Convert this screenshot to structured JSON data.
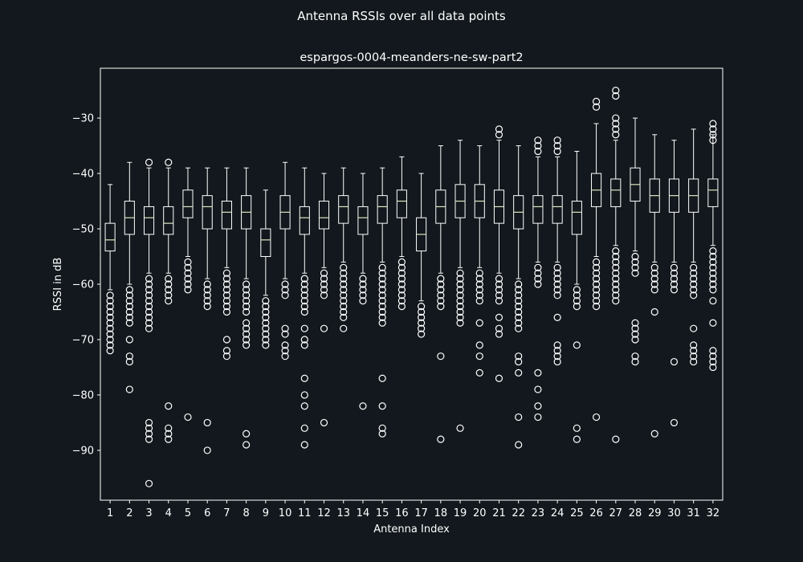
{
  "suptitle": "Antenna RSSIs over all data points",
  "chart_data": {
    "type": "boxplot",
    "title": "espargos-0004-meanders-ne-sw-part2",
    "xlabel": "Antenna Index",
    "ylabel": "RSSI in dB",
    "ylim": [
      -99,
      -21
    ],
    "yticks": [
      -90,
      -80,
      -70,
      -60,
      -50,
      -40,
      -30
    ],
    "categories": [
      "1",
      "2",
      "3",
      "4",
      "5",
      "6",
      "7",
      "8",
      "9",
      "10",
      "11",
      "12",
      "13",
      "14",
      "15",
      "16",
      "17",
      "18",
      "19",
      "20",
      "21",
      "22",
      "23",
      "24",
      "25",
      "26",
      "27",
      "28",
      "29",
      "30",
      "31",
      "32"
    ],
    "colors": {
      "background": "#12181d",
      "box": "#ffffff",
      "median": "#d9e8c0"
    },
    "boxes": [
      {
        "q1": -54,
        "median": -52,
        "q3": -49,
        "whislo": -61,
        "whishi": -42,
        "fliers": [
          -62,
          -63,
          -64,
          -65,
          -66,
          -67,
          -68,
          -69,
          -70,
          -71,
          -72
        ]
      },
      {
        "q1": -51,
        "median": -48,
        "q3": -45,
        "whislo": -60,
        "whishi": -38,
        "fliers": [
          -61,
          -62,
          -63,
          -64,
          -65,
          -66,
          -67,
          -70,
          -73,
          -74,
          -79
        ]
      },
      {
        "q1": -51,
        "median": -48,
        "q3": -46,
        "whislo": -58,
        "whishi": -39,
        "fliers": [
          -38,
          -59,
          -60,
          -61,
          -62,
          -63,
          -64,
          -65,
          -66,
          -67,
          -68,
          -85,
          -86,
          -87,
          -88,
          -96
        ]
      },
      {
        "q1": -51,
        "median": -49,
        "q3": -46,
        "whislo": -58,
        "whishi": -39,
        "fliers": [
          -38,
          -59,
          -60,
          -61,
          -62,
          -63,
          -82,
          -86,
          -87,
          -88
        ]
      },
      {
        "q1": -48,
        "median": -46,
        "q3": -43,
        "whislo": -55,
        "whishi": -39,
        "fliers": [
          -56,
          -57,
          -58,
          -59,
          -60,
          -61,
          -84
        ]
      },
      {
        "q1": -50,
        "median": -46,
        "q3": -44,
        "whislo": -59,
        "whishi": -39,
        "fliers": [
          -60,
          -61,
          -62,
          -63,
          -64,
          -85,
          -90
        ]
      },
      {
        "q1": -50,
        "median": -47,
        "q3": -45,
        "whislo": -57,
        "whishi": -39,
        "fliers": [
          -58,
          -59,
          -60,
          -61,
          -62,
          -63,
          -64,
          -65,
          -70,
          -72,
          -73
        ]
      },
      {
        "q1": -50,
        "median": -47,
        "q3": -44,
        "whislo": -59,
        "whishi": -39,
        "fliers": [
          -60,
          -61,
          -62,
          -63,
          -64,
          -65,
          -67,
          -68,
          -69,
          -70,
          -71,
          -87,
          -89
        ]
      },
      {
        "q1": -55,
        "median": -52,
        "q3": -50,
        "whislo": -62,
        "whishi": -43,
        "fliers": [
          -63,
          -64,
          -65,
          -66,
          -67,
          -68,
          -69,
          -70,
          -71
        ]
      },
      {
        "q1": -50,
        "median": -47,
        "q3": -44,
        "whislo": -59,
        "whishi": -38,
        "fliers": [
          -60,
          -61,
          -62,
          -68,
          -69,
          -71,
          -72,
          -73
        ]
      },
      {
        "q1": -51,
        "median": -48,
        "q3": -46,
        "whislo": -58,
        "whishi": -39,
        "fliers": [
          -59,
          -60,
          -61,
          -62,
          -63,
          -64,
          -65,
          -68,
          -70,
          -71,
          -77,
          -80,
          -82,
          -86,
          -89
        ]
      },
      {
        "q1": -50,
        "median": -48,
        "q3": -45,
        "whislo": -57,
        "whishi": -40,
        "fliers": [
          -58,
          -59,
          -60,
          -61,
          -62,
          -68,
          -85
        ]
      },
      {
        "q1": -49,
        "median": -46,
        "q3": -44,
        "whislo": -56,
        "whishi": -39,
        "fliers": [
          -57,
          -58,
          -59,
          -60,
          -61,
          -62,
          -63,
          -64,
          -65,
          -66,
          -68
        ]
      },
      {
        "q1": -51,
        "median": -48,
        "q3": -46,
        "whislo": -58,
        "whishi": -40,
        "fliers": [
          -59,
          -60,
          -61,
          -62,
          -63,
          -82
        ]
      },
      {
        "q1": -49,
        "median": -46,
        "q3": -44,
        "whislo": -56,
        "whishi": -39,
        "fliers": [
          -57,
          -58,
          -59,
          -60,
          -61,
          -62,
          -63,
          -64,
          -65,
          -66,
          -67,
          -77,
          -82,
          -86,
          -87
        ]
      },
      {
        "q1": -48,
        "median": -45,
        "q3": -43,
        "whislo": -55,
        "whishi": -37,
        "fliers": [
          -56,
          -57,
          -58,
          -59,
          -60,
          -61,
          -62,
          -63,
          -64
        ]
      },
      {
        "q1": -54,
        "median": -51,
        "q3": -48,
        "whislo": -63,
        "whishi": -40,
        "fliers": [
          -64,
          -65,
          -66,
          -67,
          -68,
          -69
        ]
      },
      {
        "q1": -49,
        "median": -46,
        "q3": -43,
        "whislo": -58,
        "whishi": -35,
        "fliers": [
          -59,
          -60,
          -61,
          -62,
          -63,
          -64,
          -73,
          -88
        ]
      },
      {
        "q1": -48,
        "median": -45,
        "q3": -42,
        "whislo": -57,
        "whishi": -34,
        "fliers": [
          -58,
          -59,
          -60,
          -61,
          -62,
          -63,
          -64,
          -65,
          -66,
          -67,
          -86
        ]
      },
      {
        "q1": -48,
        "median": -45,
        "q3": -42,
        "whislo": -57,
        "whishi": -35,
        "fliers": [
          -58,
          -59,
          -60,
          -61,
          -62,
          -63,
          -67,
          -71,
          -73,
          -76
        ]
      },
      {
        "q1": -49,
        "median": -46,
        "q3": -43,
        "whislo": -58,
        "whishi": -34,
        "fliers": [
          -32,
          -33,
          -59,
          -60,
          -61,
          -62,
          -63,
          -66,
          -68,
          -69,
          -77
        ]
      },
      {
        "q1": -50,
        "median": -47,
        "q3": -44,
        "whislo": -59,
        "whishi": -35,
        "fliers": [
          -60,
          -61,
          -62,
          -63,
          -64,
          -65,
          -66,
          -67,
          -68,
          -73,
          -74,
          -76,
          -84,
          -89
        ]
      },
      {
        "q1": -49,
        "median": -46,
        "q3": -44,
        "whislo": -56,
        "whishi": -37,
        "fliers": [
          -34,
          -35,
          -36,
          -57,
          -58,
          -59,
          -60,
          -76,
          -79,
          -82,
          -84
        ]
      },
      {
        "q1": -49,
        "median": -46,
        "q3": -44,
        "whislo": -56,
        "whishi": -37,
        "fliers": [
          -34,
          -35,
          -36,
          -57,
          -58,
          -59,
          -60,
          -61,
          -62,
          -66,
          -71,
          -72,
          -73,
          -74
        ]
      },
      {
        "q1": -51,
        "median": -47,
        "q3": -45,
        "whislo": -60,
        "whishi": -36,
        "fliers": [
          -61,
          -62,
          -63,
          -64,
          -71,
          -86,
          -88
        ]
      },
      {
        "q1": -46,
        "median": -43,
        "q3": -40,
        "whislo": -55,
        "whishi": -31,
        "fliers": [
          -27,
          -28,
          -56,
          -57,
          -58,
          -59,
          -60,
          -61,
          -62,
          -63,
          -64,
          -84
        ]
      },
      {
        "q1": -46,
        "median": -43,
        "q3": -41,
        "whislo": -53,
        "whishi": -34,
        "fliers": [
          -25,
          -26,
          -30,
          -31,
          -32,
          -33,
          -54,
          -55,
          -56,
          -57,
          -58,
          -59,
          -60,
          -61,
          -62,
          -63,
          -88
        ]
      },
      {
        "q1": -45,
        "median": -42,
        "q3": -39,
        "whislo": -54,
        "whishi": -30,
        "fliers": [
          -55,
          -56,
          -57,
          -58,
          -67,
          -68,
          -69,
          -70,
          -73,
          -74
        ]
      },
      {
        "q1": -47,
        "median": -44,
        "q3": -41,
        "whislo": -56,
        "whishi": -33,
        "fliers": [
          -57,
          -58,
          -59,
          -60,
          -61,
          -65,
          -87
        ]
      },
      {
        "q1": -47,
        "median": -44,
        "q3": -41,
        "whislo": -56,
        "whishi": -34,
        "fliers": [
          -57,
          -58,
          -59,
          -60,
          -61,
          -74,
          -85
        ]
      },
      {
        "q1": -47,
        "median": -44,
        "q3": -41,
        "whislo": -56,
        "whishi": -32,
        "fliers": [
          -57,
          -58,
          -59,
          -60,
          -61,
          -62,
          -68,
          -71,
          -72,
          -73,
          -74
        ]
      },
      {
        "q1": -46,
        "median": -43,
        "q3": -41,
        "whislo": -53,
        "whishi": -33,
        "fliers": [
          -31,
          -32,
          -33,
          -34,
          -54,
          -55,
          -56,
          -57,
          -58,
          -59,
          -60,
          -61,
          -63,
          -67,
          -72,
          -73,
          -74,
          -75
        ]
      }
    ]
  }
}
